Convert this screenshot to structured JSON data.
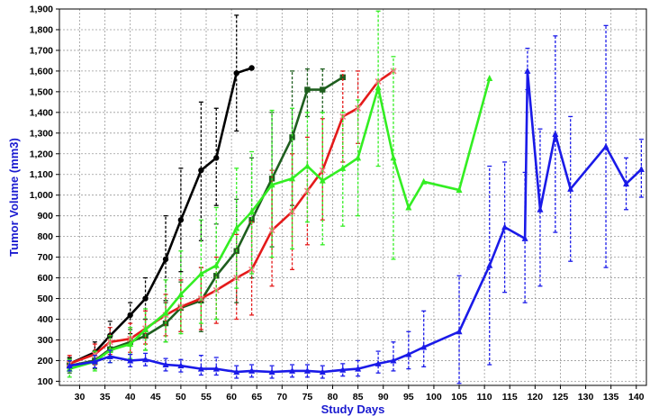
{
  "chart_data": {
    "type": "line",
    "title": "",
    "xlabel": "Study Days",
    "ylabel": "Tumor Volume (mm3)",
    "xlim": [
      26,
      142
    ],
    "ylim": [
      80,
      1900
    ],
    "grid": true,
    "xticks": [
      30,
      35,
      40,
      45,
      50,
      55,
      60,
      65,
      70,
      75,
      80,
      85,
      90,
      95,
      100,
      105,
      110,
      115,
      120,
      125,
      130,
      135,
      140
    ],
    "yticks": [
      100,
      200,
      300,
      400,
      500,
      600,
      700,
      800,
      900,
      1000,
      1100,
      1200,
      1300,
      1400,
      1500,
      1600,
      1700,
      1800,
      1900
    ],
    "label_colors": {
      "axis_title": "#1a1ad0",
      "tick": "#000000"
    },
    "series": [
      {
        "color": "#000000",
        "marker": "circle",
        "points": [
          {
            "x": 28,
            "y": 185,
            "lo": 150,
            "hi": 215
          },
          {
            "x": 33,
            "y": 240,
            "lo": 190,
            "hi": 290
          },
          {
            "x": 36,
            "y": 320,
            "lo": 260,
            "hi": 390
          },
          {
            "x": 40,
            "y": 420,
            "lo": 330,
            "hi": 480
          },
          {
            "x": 43,
            "y": 500,
            "lo": 400,
            "hi": 600
          },
          {
            "x": 47,
            "y": 690,
            "lo": 490,
            "hi": 900
          },
          {
            "x": 50,
            "y": 880,
            "lo": 630,
            "hi": 1130
          },
          {
            "x": 54,
            "y": 1120,
            "lo": 780,
            "hi": 1450
          },
          {
            "x": 57,
            "y": 1180,
            "lo": 950,
            "hi": 1420
          },
          {
            "x": 61,
            "y": 1590,
            "lo": 1310,
            "hi": 1870
          },
          {
            "x": 64,
            "y": 1615
          }
        ]
      },
      {
        "color": "#1e5e1e",
        "marker": "square",
        "points": [
          {
            "x": 28,
            "y": 175,
            "lo": 140,
            "hi": 210
          },
          {
            "x": 33,
            "y": 200,
            "lo": 160,
            "hi": 245
          },
          {
            "x": 36,
            "y": 255,
            "lo": 210,
            "hi": 310
          },
          {
            "x": 40,
            "y": 290,
            "lo": 230,
            "hi": 350
          },
          {
            "x": 43,
            "y": 320,
            "lo": 250,
            "hi": 400
          },
          {
            "x": 47,
            "y": 380,
            "lo": 290,
            "hi": 480
          },
          {
            "x": 50,
            "y": 455,
            "lo": 340,
            "hi": 580
          },
          {
            "x": 54,
            "y": 490,
            "lo": 340,
            "hi": 650
          },
          {
            "x": 57,
            "y": 610,
            "lo": 400,
            "hi": 860
          },
          {
            "x": 61,
            "y": 730,
            "lo": 480,
            "hi": 980
          },
          {
            "x": 64,
            "y": 880,
            "lo": 600,
            "hi": 1180
          },
          {
            "x": 68,
            "y": 1080,
            "lo": 750,
            "hi": 1400
          },
          {
            "x": 72,
            "y": 1280,
            "lo": 950,
            "hi": 1600
          },
          {
            "x": 75,
            "y": 1510,
            "lo": 1380,
            "hi": 1610
          },
          {
            "x": 78,
            "y": 1510,
            "lo": 1400,
            "hi": 1610
          },
          {
            "x": 82,
            "y": 1570
          }
        ]
      },
      {
        "color": "#e41a1a",
        "marker": "cross",
        "points": [
          {
            "x": 28,
            "y": 185,
            "lo": 150,
            "hi": 225
          },
          {
            "x": 33,
            "y": 230,
            "lo": 180,
            "hi": 280
          },
          {
            "x": 36,
            "y": 290,
            "lo": 230,
            "hi": 360
          },
          {
            "x": 40,
            "y": 305,
            "lo": 240,
            "hi": 380
          },
          {
            "x": 43,
            "y": 355,
            "lo": 280,
            "hi": 440
          },
          {
            "x": 47,
            "y": 420,
            "lo": 320,
            "hi": 520
          },
          {
            "x": 50,
            "y": 460,
            "lo": 340,
            "hi": 590
          },
          {
            "x": 54,
            "y": 500,
            "lo": 350,
            "hi": 650
          },
          {
            "x": 57,
            "y": 540,
            "lo": 380,
            "hi": 700
          },
          {
            "x": 61,
            "y": 600,
            "lo": 400,
            "hi": 810
          },
          {
            "x": 64,
            "y": 640,
            "lo": 420,
            "hi": 870
          },
          {
            "x": 68,
            "y": 830,
            "lo": 560,
            "hi": 1120
          },
          {
            "x": 72,
            "y": 920,
            "lo": 640,
            "hi": 1200
          },
          {
            "x": 75,
            "y": 1020,
            "lo": 760,
            "hi": 1280
          },
          {
            "x": 78,
            "y": 1120,
            "lo": 880,
            "hi": 1370
          },
          {
            "x": 82,
            "y": 1380,
            "lo": 1160,
            "hi": 1600
          },
          {
            "x": 85,
            "y": 1420,
            "lo": 1250,
            "hi": 1600
          },
          {
            "x": 89,
            "y": 1550
          },
          {
            "x": 92,
            "y": 1600
          }
        ]
      },
      {
        "color": "#33ee22",
        "marker": "triangle",
        "points": [
          {
            "x": 28,
            "y": 160,
            "lo": 120,
            "hi": 205
          },
          {
            "x": 33,
            "y": 195,
            "lo": 150,
            "hi": 245
          },
          {
            "x": 36,
            "y": 250,
            "lo": 190,
            "hi": 320
          },
          {
            "x": 40,
            "y": 280,
            "lo": 210,
            "hi": 360
          },
          {
            "x": 43,
            "y": 350,
            "lo": 250,
            "hi": 450
          },
          {
            "x": 47,
            "y": 430,
            "lo": 290,
            "hi": 590
          },
          {
            "x": 50,
            "y": 520,
            "lo": 330,
            "hi": 730
          },
          {
            "x": 54,
            "y": 620,
            "lo": 380,
            "hi": 880
          },
          {
            "x": 57,
            "y": 660,
            "lo": 400,
            "hi": 940
          },
          {
            "x": 61,
            "y": 840,
            "lo": 550,
            "hi": 1130
          },
          {
            "x": 64,
            "y": 920,
            "lo": 620,
            "hi": 1210
          },
          {
            "x": 68,
            "y": 1050,
            "lo": 700,
            "hi": 1410
          },
          {
            "x": 72,
            "y": 1080,
            "lo": 740,
            "hi": 1420
          },
          {
            "x": 75,
            "y": 1140,
            "lo": 870,
            "hi": 1400
          },
          {
            "x": 78,
            "y": 1070,
            "lo": 760,
            "hi": 1400
          },
          {
            "x": 82,
            "y": 1130,
            "lo": 850,
            "hi": 1400
          },
          {
            "x": 85,
            "y": 1180,
            "lo": 900,
            "hi": 1460
          },
          {
            "x": 89,
            "y": 1520,
            "lo": 1140,
            "hi": 1890
          },
          {
            "x": 92,
            "y": 1180,
            "lo": 690,
            "hi": 1670
          },
          {
            "x": 95,
            "y": 940
          },
          {
            "x": 98,
            "y": 1065
          },
          {
            "x": 105,
            "y": 1025
          },
          {
            "x": 111,
            "y": 1565
          }
        ]
      },
      {
        "color": "#1a1ae8",
        "marker": "triangle",
        "points": [
          {
            "x": 28,
            "y": 175,
            "lo": 150,
            "hi": 200
          },
          {
            "x": 33,
            "y": 195,
            "lo": 165,
            "hi": 225
          },
          {
            "x": 36,
            "y": 220,
            "lo": 190,
            "hi": 250
          },
          {
            "x": 40,
            "y": 200,
            "lo": 170,
            "hi": 230
          },
          {
            "x": 43,
            "y": 205,
            "lo": 175,
            "hi": 235
          },
          {
            "x": 47,
            "y": 180,
            "lo": 150,
            "hi": 210
          },
          {
            "x": 50,
            "y": 175,
            "lo": 145,
            "hi": 205
          },
          {
            "x": 54,
            "y": 160,
            "lo": 130,
            "hi": 225
          },
          {
            "x": 57,
            "y": 160,
            "lo": 130,
            "hi": 215
          },
          {
            "x": 61,
            "y": 145,
            "lo": 115,
            "hi": 175
          },
          {
            "x": 64,
            "y": 150,
            "lo": 120,
            "hi": 180
          },
          {
            "x": 68,
            "y": 145,
            "lo": 115,
            "hi": 175
          },
          {
            "x": 72,
            "y": 150,
            "lo": 120,
            "hi": 180
          },
          {
            "x": 75,
            "y": 150,
            "lo": 120,
            "hi": 180
          },
          {
            "x": 78,
            "y": 145,
            "lo": 115,
            "hi": 175
          },
          {
            "x": 82,
            "y": 155,
            "lo": 125,
            "hi": 185
          },
          {
            "x": 85,
            "y": 160,
            "lo": 125,
            "hi": 200
          },
          {
            "x": 89,
            "y": 185,
            "lo": 140,
            "hi": 245
          },
          {
            "x": 92,
            "y": 200,
            "lo": 150,
            "hi": 290
          },
          {
            "x": 95,
            "y": 230,
            "lo": 160,
            "hi": 340
          },
          {
            "x": 98,
            "y": 265,
            "lo": 170,
            "hi": 440
          },
          {
            "x": 105,
            "y": 340,
            "lo": 90,
            "hi": 610
          },
          {
            "x": 111,
            "y": 660,
            "lo": 180,
            "hi": 1140
          },
          {
            "x": 114,
            "y": 845,
            "lo": 530,
            "hi": 1160
          },
          {
            "x": 118,
            "y": 790,
            "lo": 480,
            "hi": 1110
          },
          {
            "x": 118.5,
            "y": 1600,
            "lo": 1510,
            "hi": 1710
          },
          {
            "x": 121,
            "y": 930,
            "lo": 560,
            "hi": 1320
          },
          {
            "x": 124,
            "y": 1295,
            "lo": 820,
            "hi": 1770
          },
          {
            "x": 127,
            "y": 1030,
            "lo": 680,
            "hi": 1380
          },
          {
            "x": 134,
            "y": 1235,
            "lo": 650,
            "hi": 1820
          },
          {
            "x": 138,
            "y": 1055,
            "lo": 930,
            "hi": 1180
          },
          {
            "x": 141,
            "y": 1125,
            "lo": 990,
            "hi": 1270
          }
        ]
      }
    ]
  }
}
